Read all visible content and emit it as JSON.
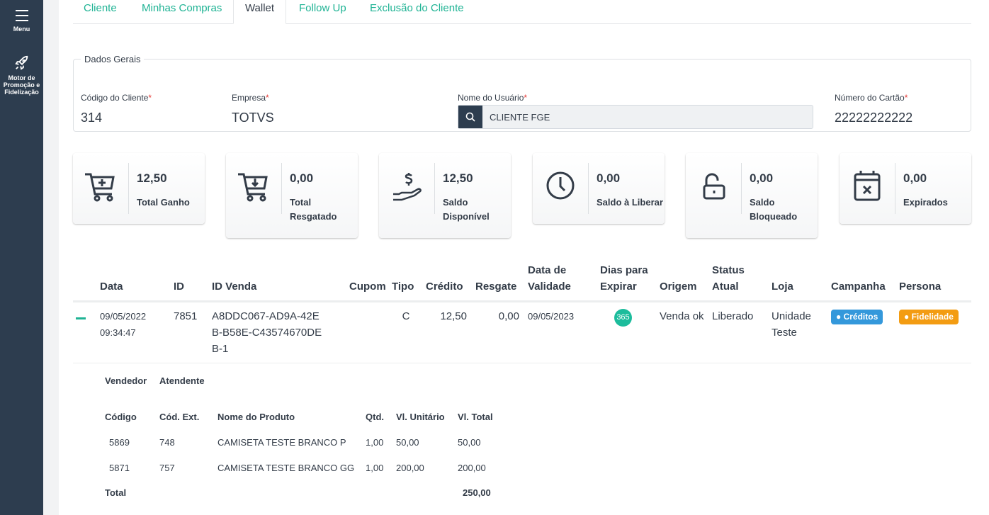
{
  "sidebar": {
    "menu_label": "Menu",
    "items": [
      {
        "label": "Motor de Promoção e Fidelização",
        "icon": "rocket-icon"
      }
    ]
  },
  "tabs": [
    {
      "label": "Cliente"
    },
    {
      "label": "Minhas Compras"
    },
    {
      "label": "Wallet",
      "active": true
    },
    {
      "label": "Follow Up"
    },
    {
      "label": "Exclusão do Cliente"
    }
  ],
  "general": {
    "legend": "Dados Gerais",
    "required_mark": "*",
    "cliente_label": "Código do Cliente",
    "cliente_value": "314",
    "empresa_label": "Empresa",
    "empresa_value": "TOTVS",
    "usuario_label": "Nome do Usuário",
    "usuario_value": "CLIENTE FGE",
    "cartao_label": "Número do Cartão",
    "cartao_value": "22222222222"
  },
  "cards": [
    {
      "value": "12,50",
      "label": "Total Ganho",
      "icon": "cart-plus-icon"
    },
    {
      "value": "0,00",
      "label": "Total Resgatado",
      "icon": "cart-download-icon"
    },
    {
      "value": "12,50",
      "label": "Saldo Disponível",
      "icon": "hand-dollar-icon"
    },
    {
      "value": "0,00",
      "label": "Saldo à Liberar",
      "icon": "clock-icon"
    },
    {
      "value": "0,00",
      "label": "Saldo Bloqueado",
      "icon": "unlock-icon"
    },
    {
      "value": "0,00",
      "label": "Expirados",
      "icon": "calendar-x-icon"
    }
  ],
  "table": {
    "headers": [
      "Data",
      "ID",
      "ID Venda",
      "Cupom",
      "Tipo",
      "Crédito",
      "Resgate",
      "Data de Validade",
      "Dias para Expirar",
      "Origem",
      "Status Atual",
      "Loja",
      "Campanha",
      "Persona"
    ],
    "rows": [
      {
        "data": "09/05/2022",
        "hora": "09:34:47",
        "id": "7851",
        "id_venda": "A8DDC067-AD9A-42EB-B58E-C43574670DEB-1",
        "cupom": "",
        "tipo": "C",
        "credito": "12,50",
        "resgate": "0,00",
        "validade": "09/05/2023",
        "dias": "365",
        "origem": "Venda ok",
        "status": "Liberado",
        "loja": "Unidade Teste",
        "campanha": "Créditos",
        "persona": "Fidelidade"
      }
    ]
  },
  "colors": {
    "accent": "#1fb394",
    "sidebar": "#2d3d4f",
    "campanha": "#3498db",
    "persona": "#f39c12",
    "dias": "#1cbc9c"
  },
  "details": {
    "vendedor_label": "Vendedor",
    "atendente_label": "Atendente",
    "headers": [
      "Código",
      "Cód. Ext.",
      "Nome do Produto",
      "Qtd.",
      "Vl. Unitário",
      "Vl. Total"
    ],
    "rows": [
      [
        "5869",
        "748",
        "CAMISETA TESTE BRANCO P",
        "1,00",
        "50,00",
        "50,00"
      ],
      [
        "5871",
        "757",
        "CAMISETA TESTE BRANCO GG",
        "1,00",
        "200,00",
        "200,00"
      ]
    ],
    "total_label": "Total",
    "total_value": "250,00"
  }
}
